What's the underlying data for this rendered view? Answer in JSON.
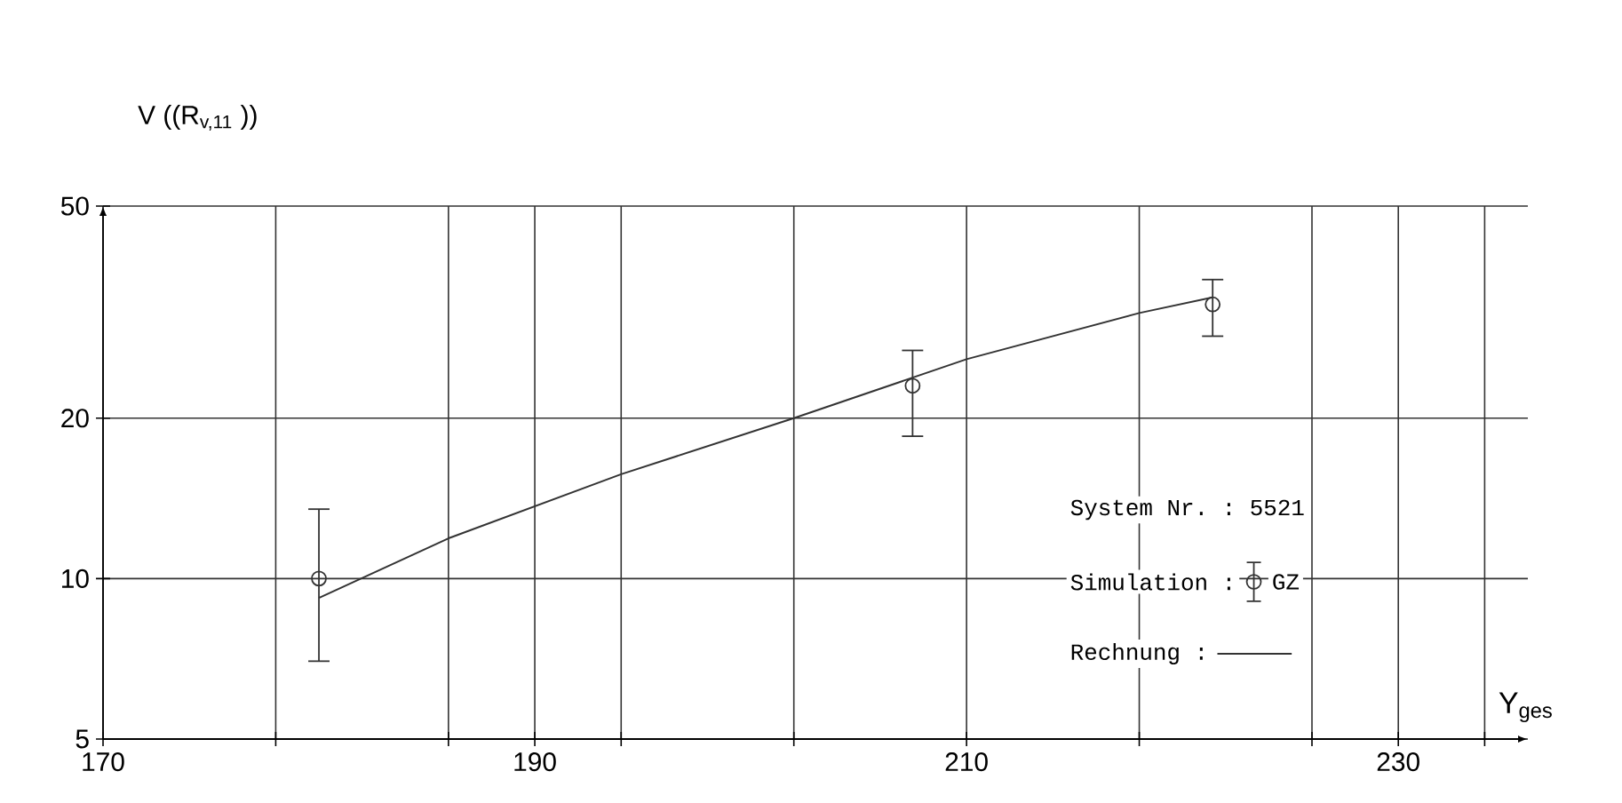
{
  "chart_data": {
    "type": "scatter",
    "xlabel": "Y$_{ges}$",
    "ylabel": "V ((R$_{v,11}$ ))",
    "legend_title": "System Nr. : 5521",
    "annotations": [
      "GZ"
    ],
    "series": [
      {
        "name": "Simulation :",
        "color": "#333333",
        "marker": "circle",
        "x": [
          180,
          207.5,
          221.4
        ],
        "values": [
          10,
          23,
          32.7
        ],
        "errors": [
          [
            7,
            13.5
          ],
          [
            18.5,
            26.8
          ],
          [
            28.5,
            36.4
          ]
        ]
      },
      {
        "name": "Rechnung :",
        "type": "line",
        "color": "#333333",
        "marker": "none",
        "x": [
          180,
          186,
          194,
          202,
          210,
          218,
          221.4
        ],
        "values": [
          9.2,
          11.9,
          15.7,
          20,
          25.8,
          31.5,
          33.7
        ]
      }
    ],
    "xlim": [
      170,
      236
    ],
    "ylim": [
      5,
      50
    ],
    "xticks": [
      170,
      {
        "value": 178,
        "label": null
      },
      {
        "value": 186,
        "label": null
      },
      190,
      {
        "value": 194,
        "label": null
      },
      {
        "value": 202,
        "label": null
      },
      210,
      {
        "value": 218,
        "label": null
      },
      {
        "value": 226,
        "label": null
      },
      230,
      {
        "value": 234,
        "label": null
      }
    ],
    "yticks": [
      5,
      10,
      20,
      50
    ],
    "log": "y",
    "grid": true,
    "legend": "bottom right"
  }
}
